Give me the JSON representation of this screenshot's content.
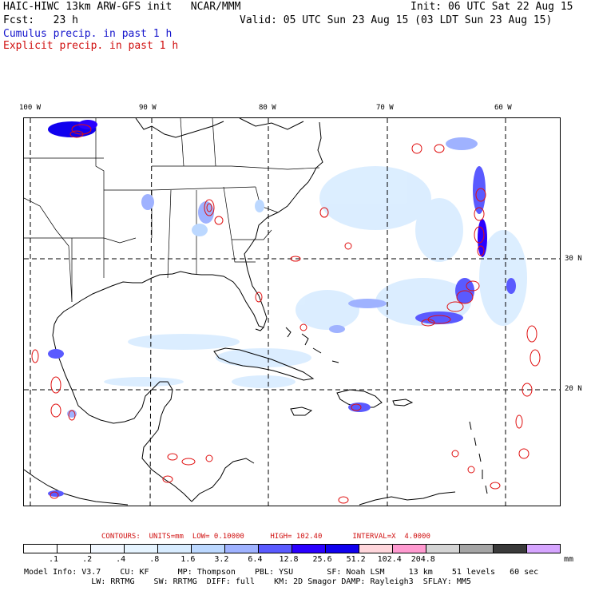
{
  "header": {
    "title_left": "HAIC-HIWC 13km ARW-GFS init   NCAR/MMM",
    "init": "Init: 06 UTC Sat 22 Aug 15",
    "fcst_label": "Fcst:   23 h",
    "valid": "Valid: 05 UTC Sun 23 Aug 15 (03 LDT Sun 23 Aug 15)",
    "cumulus": "Cumulus precip. in past 1 h",
    "explicit": "Explicit precip. in past 1 h"
  },
  "axes": {
    "lon_labels": [
      "100 W",
      "90 W",
      "80 W",
      "70 W",
      "60 W"
    ],
    "lat_labels": [
      "30 N",
      "20 N"
    ]
  },
  "contours": {
    "label": "CONTOURS:",
    "units": "UNITS=mm",
    "low": "LOW= 0.10000",
    "high": "HIGH= 102.40",
    "interval": "INTERVAL=X  4.0000"
  },
  "colorbar": {
    "units": "mm",
    "colors": [
      "#ffffff",
      "#ffffff",
      "#f2f8ff",
      "#e6f4ff",
      "#d8ecff",
      "#bcd8ff",
      "#9fb2ff",
      "#5a5aff",
      "#2a00ff",
      "#1000ee",
      "#ffd6dc",
      "#ff9ad0",
      "#d4d4d4",
      "#a5a5a5",
      "#3a3a3a",
      "#d6a5ff"
    ],
    "ticks": [
      ".1",
      ".2",
      ".4",
      ".8",
      "1.6",
      "3.2",
      "6.4",
      "12.8",
      "25.6",
      "51.2",
      "102.4",
      "204.8"
    ]
  },
  "model_info": {
    "line1": "Model Info: V3.7    CU: KF      MP: Thompson    PBL: YSU       SF: Noah LSM     13 km    51 levels   60 sec",
    "line2": "              LW: RRTMG    SW: RRTMG  DIFF: full    KM: 2D Smagor DAMP: Rayleigh3  SFLAY: MM5"
  }
}
